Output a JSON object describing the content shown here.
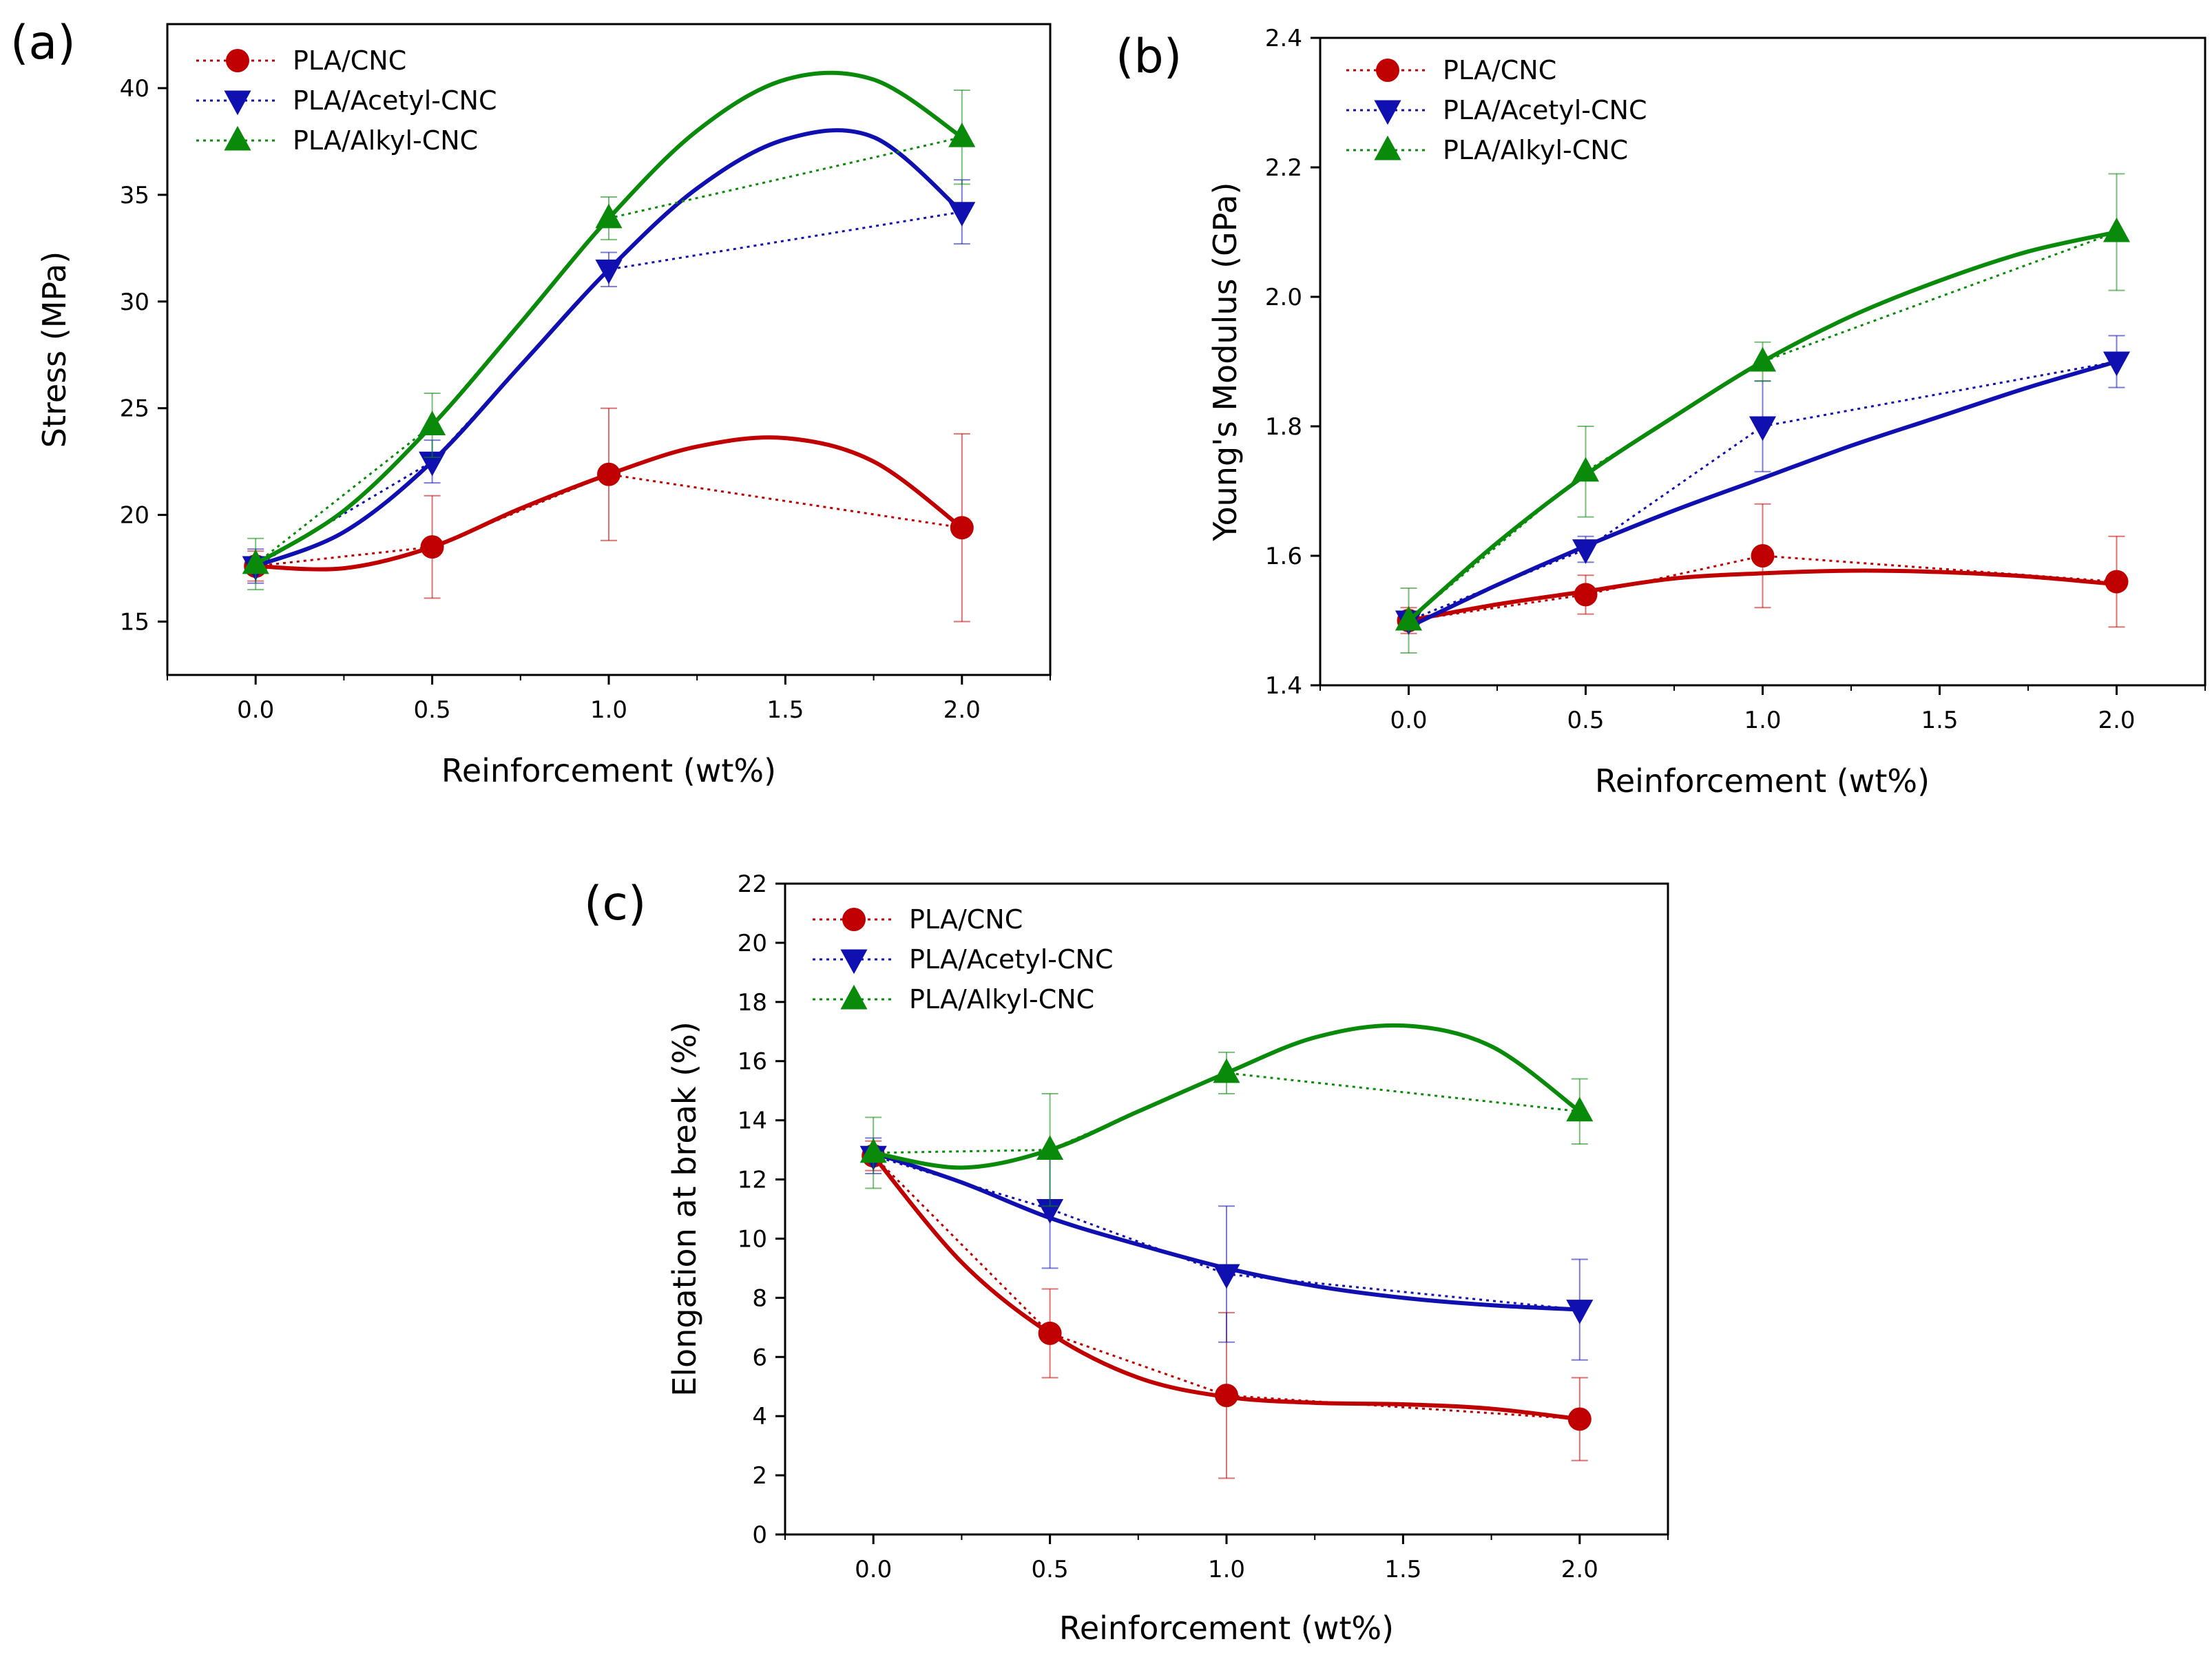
{
  "chart_data": [
    {
      "id": "a",
      "panel_label": "(a)",
      "type": "line",
      "x": [
        0.0,
        0.5,
        1.0,
        2.0
      ],
      "xticks": [
        "0.0",
        "0.5",
        "1.0",
        "1.5",
        "2.0"
      ],
      "xlim": [
        -0.25,
        2.25
      ],
      "ylim": [
        12.5,
        43
      ],
      "yticks": [
        "15",
        "20",
        "25",
        "30",
        "35",
        "40"
      ],
      "xlabel": "Reinforcement (wt%)",
      "ylabel": "Stress (MPa)",
      "legend_position": "top-left",
      "series": [
        {
          "name": "PLA/CNC",
          "color": "#c00000",
          "marker": "circle",
          "values": [
            17.6,
            18.5,
            21.9,
            19.4
          ],
          "errors": [
            0.7,
            2.4,
            3.1,
            4.4
          ],
          "fit": [
            [
              0,
              17.6
            ],
            [
              0.25,
              17.5
            ],
            [
              0.5,
              18.5
            ],
            [
              0.75,
              20.3
            ],
            [
              1.0,
              21.9
            ],
            [
              1.25,
              23.2
            ],
            [
              1.5,
              23.6
            ],
            [
              1.75,
              22.5
            ],
            [
              2.0,
              19.4
            ]
          ]
        },
        {
          "name": "PLA/Acetyl-CNC",
          "color": "#1010b0",
          "marker": "triangle-down",
          "values": [
            17.6,
            22.5,
            31.5,
            34.2
          ],
          "errors": [
            0.8,
            1.0,
            0.8,
            1.5
          ],
          "fit": [
            [
              0,
              17.6
            ],
            [
              0.25,
              19.2
            ],
            [
              0.5,
              22.5
            ],
            [
              0.75,
              27.0
            ],
            [
              1.0,
              31.5
            ],
            [
              1.25,
              35.3
            ],
            [
              1.5,
              37.6
            ],
            [
              1.75,
              37.7
            ],
            [
              2.0,
              34.2
            ]
          ]
        },
        {
          "name": "PLA/Alkyl-CNC",
          "color": "#0a8a0a",
          "marker": "triangle-up",
          "values": [
            17.7,
            24.2,
            33.9,
            37.7
          ],
          "errors": [
            1.2,
            1.5,
            1.0,
            2.2
          ],
          "fit": [
            [
              0,
              17.7
            ],
            [
              0.25,
              20.2
            ],
            [
              0.5,
              24.2
            ],
            [
              0.75,
              29.0
            ],
            [
              1.0,
              33.9
            ],
            [
              1.25,
              38.0
            ],
            [
              1.5,
              40.4
            ],
            [
              1.75,
              40.4
            ],
            [
              2.0,
              37.7
            ]
          ]
        }
      ]
    },
    {
      "id": "b",
      "panel_label": "(b)",
      "type": "line",
      "x": [
        0.0,
        0.5,
        1.0,
        2.0
      ],
      "xticks": [
        "0.0",
        "0.5",
        "1.0",
        "1.5",
        "2.0"
      ],
      "xlim": [
        -0.25,
        2.25
      ],
      "ylim": [
        1.4,
        2.4
      ],
      "yticks": [
        "1.4",
        "1.6",
        "1.8",
        "2.0",
        "2.2",
        "2.4"
      ],
      "xlabel": "Reinforcement (wt%)",
      "ylabel": "Young's Modulus (GPa)",
      "legend_position": "top-left",
      "series": [
        {
          "name": "PLA/CNC",
          "color": "#c00000",
          "marker": "circle",
          "values": [
            1.5,
            1.54,
            1.6,
            1.56
          ],
          "errors": [
            0.02,
            0.03,
            0.08,
            0.07
          ],
          "fit": [
            [
              0,
              1.5
            ],
            [
              0.25,
              1.525
            ],
            [
              0.5,
              1.545
            ],
            [
              0.75,
              1.565
            ],
            [
              1.0,
              1.573
            ],
            [
              1.25,
              1.577
            ],
            [
              1.5,
              1.575
            ],
            [
              1.75,
              1.568
            ],
            [
              2.0,
              1.556
            ]
          ]
        },
        {
          "name": "PLA/Acetyl-CNC",
          "color": "#1010b0",
          "marker": "triangle-down",
          "values": [
            1.5,
            1.61,
            1.8,
            1.9
          ],
          "errors": [
            0.01,
            0.02,
            0.07,
            0.04
          ],
          "fit": [
            [
              0,
              1.49
            ],
            [
              0.25,
              1.555
            ],
            [
              0.5,
              1.615
            ],
            [
              0.75,
              1.67
            ],
            [
              1.0,
              1.72
            ],
            [
              1.25,
              1.77
            ],
            [
              1.5,
              1.815
            ],
            [
              1.75,
              1.86
            ],
            [
              2.0,
              1.9
            ]
          ]
        },
        {
          "name": "PLA/Alkyl-CNC",
          "color": "#0a8a0a",
          "marker": "triangle-up",
          "values": [
            1.5,
            1.73,
            1.9,
            2.1
          ],
          "errors": [
            0.05,
            0.07,
            0.03,
            0.09
          ],
          "fit": [
            [
              0,
              1.5
            ],
            [
              0.25,
              1.62
            ],
            [
              0.5,
              1.725
            ],
            [
              0.75,
              1.815
            ],
            [
              1.0,
              1.9
            ],
            [
              1.25,
              1.97
            ],
            [
              1.5,
              2.025
            ],
            [
              1.75,
              2.07
            ],
            [
              2.0,
              2.1
            ]
          ]
        }
      ]
    },
    {
      "id": "c",
      "panel_label": "(c)",
      "type": "line",
      "x": [
        0.0,
        0.5,
        1.0,
        2.0
      ],
      "xticks": [
        "0.0",
        "0.5",
        "1.0",
        "1.5",
        "2.0"
      ],
      "xlim": [
        -0.25,
        2.25
      ],
      "ylim": [
        0,
        22
      ],
      "yticks": [
        "0",
        "2",
        "4",
        "6",
        "8",
        "10",
        "12",
        "14",
        "16",
        "18",
        "20",
        "22"
      ],
      "xlabel": "Reinforcement (wt%)",
      "ylabel": "Elongation at break (%)",
      "legend_position": "top-left",
      "series": [
        {
          "name": "PLA/CNC",
          "color": "#c00000",
          "marker": "circle",
          "values": [
            12.8,
            6.8,
            4.7,
            3.9
          ],
          "errors": [
            0.5,
            1.5,
            2.8,
            1.4
          ],
          "fit": [
            [
              0,
              12.8
            ],
            [
              0.25,
              9.2
            ],
            [
              0.5,
              6.8
            ],
            [
              0.75,
              5.3
            ],
            [
              1.0,
              4.65
            ],
            [
              1.25,
              4.45
            ],
            [
              1.5,
              4.4
            ],
            [
              1.75,
              4.25
            ],
            [
              2.0,
              3.9
            ]
          ]
        },
        {
          "name": "PLA/Acetyl-CNC",
          "color": "#1010b0",
          "marker": "triangle-down",
          "values": [
            12.8,
            11.0,
            8.8,
            7.6
          ],
          "errors": [
            0.6,
            2.0,
            2.3,
            1.7
          ],
          "fit": [
            [
              0,
              12.9
            ],
            [
              0.25,
              11.9
            ],
            [
              0.5,
              10.7
            ],
            [
              0.75,
              9.8
            ],
            [
              1.0,
              9.0
            ],
            [
              1.25,
              8.4
            ],
            [
              1.5,
              8.0
            ],
            [
              1.75,
              7.75
            ],
            [
              2.0,
              7.6
            ]
          ]
        },
        {
          "name": "PLA/Alkyl-CNC",
          "color": "#0a8a0a",
          "marker": "triangle-up",
          "values": [
            12.9,
            13.0,
            15.6,
            14.3
          ],
          "errors": [
            1.2,
            1.9,
            0.7,
            1.1
          ],
          "fit": [
            [
              0,
              12.9
            ],
            [
              0.25,
              12.4
            ],
            [
              0.5,
              13.0
            ],
            [
              0.75,
              14.3
            ],
            [
              1.0,
              15.6
            ],
            [
              1.25,
              16.8
            ],
            [
              1.5,
              17.2
            ],
            [
              1.75,
              16.5
            ],
            [
              2.0,
              14.3
            ]
          ]
        }
      ]
    }
  ]
}
